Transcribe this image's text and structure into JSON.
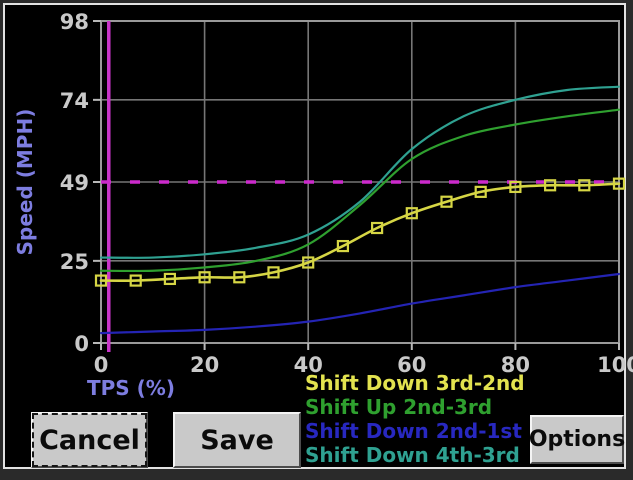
{
  "window": {
    "background": "#000000",
    "frame_color": "#e2e2e2",
    "outer_color": "#2a2a2a"
  },
  "chart_data": {
    "type": "line",
    "title": "",
    "xlabel": "TPS (%)",
    "ylabel": "Speed (MPH)",
    "xlim": [
      0,
      100
    ],
    "ylim": [
      0,
      98
    ],
    "x_ticks": [
      0,
      20,
      40,
      60,
      80,
      100
    ],
    "y_ticks": [
      0,
      25,
      49,
      74,
      98
    ],
    "grid": true,
    "grid_color": "#767676",
    "border_color": "#9a9a9a",
    "tick_label_color": "#c9c9c9",
    "cursor_line": {
      "x": 1.5,
      "color": "#c935c9"
    },
    "reference_line": {
      "y": 49,
      "color": "#cc2acc",
      "style": "dashed"
    },
    "series": [
      {
        "name": "Shift Down 3rd-2nd",
        "color": "#d6d645",
        "marker": "square",
        "x": [
          0,
          6.7,
          13.3,
          20,
          26.7,
          33.3,
          40,
          46.7,
          53.3,
          60,
          66.7,
          73.3,
          80,
          86.7,
          93.3,
          100
        ],
        "values": [
          19,
          19,
          19.5,
          20,
          20,
          21.5,
          24.5,
          29.5,
          35,
          39.5,
          43,
          46,
          47.5,
          48,
          48,
          48.5
        ]
      },
      {
        "name": "Shift Up 2nd-3rd",
        "color": "#2fa02f",
        "marker": "none",
        "x": [
          0,
          10,
          20,
          30,
          40,
          50,
          60,
          70,
          80,
          90,
          100
        ],
        "values": [
          22,
          22,
          23,
          25,
          30,
          42,
          56,
          63,
          66.5,
          69,
          71
        ]
      },
      {
        "name": "Shift Down 2nd-1st",
        "color": "#2424b4",
        "marker": "none",
        "x": [
          0,
          10,
          20,
          30,
          40,
          50,
          60,
          70,
          80,
          90,
          100
        ],
        "values": [
          3,
          3.5,
          4,
          5,
          6.5,
          9,
          12,
          14.5,
          17,
          19,
          21
        ]
      },
      {
        "name": "Shift Down 4th-3rd",
        "color": "#2fa191",
        "marker": "none",
        "x": [
          0,
          10,
          20,
          30,
          40,
          50,
          60,
          70,
          80,
          90,
          100
        ],
        "values": [
          26,
          26,
          27,
          29,
          33,
          43,
          59,
          69,
          74,
          77,
          78
        ]
      }
    ]
  },
  "legend": {
    "items": [
      {
        "label": "Shift Down 3rd-2nd",
        "color": "#e3e34f"
      },
      {
        "label": "Shift Up 2nd-3rd",
        "color": "#2fa02f"
      },
      {
        "label": "Shift Down 2nd-1st",
        "color": "#2828c0"
      },
      {
        "label": "Shift Down 4th-3rd",
        "color": "#2fa191"
      }
    ]
  },
  "buttons": {
    "cancel": "Cancel",
    "save": "Save",
    "options": "Options"
  }
}
